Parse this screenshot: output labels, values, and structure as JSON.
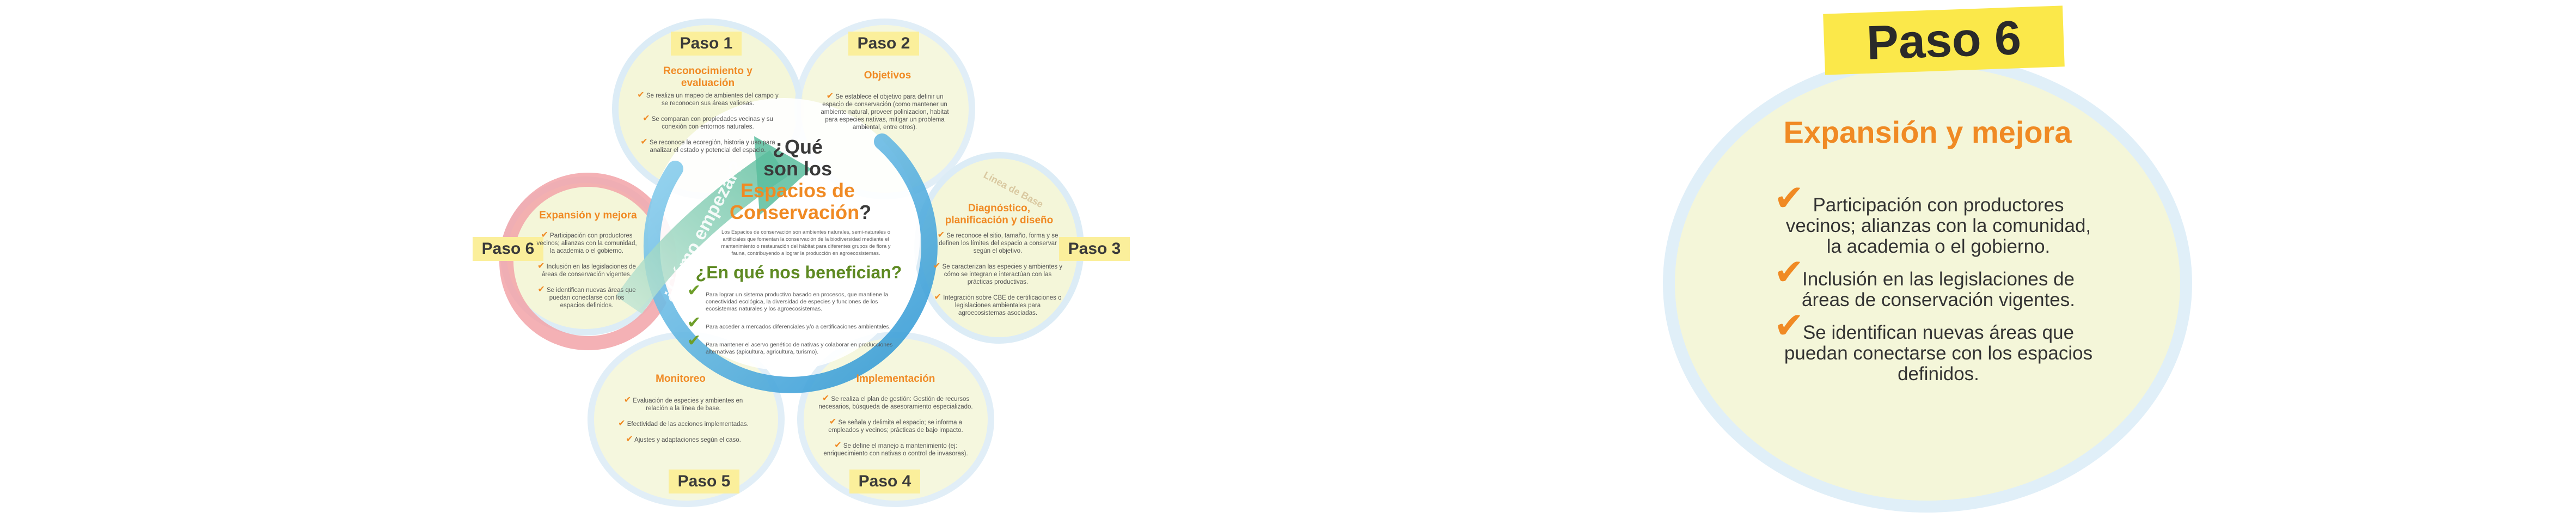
{
  "steps": {
    "paso1": {
      "tag": "Paso 1",
      "title": "Reconocimiento y evaluación",
      "items": [
        "Se realiza un mapeo de ambientes del campo y se reconocen sus áreas valiosas.",
        "Se comparan con propiedades vecinas y su conexión con entornos naturales.",
        "Se reconoce la ecoregión, historia y uso para analizar el estado y potencial del espacio."
      ]
    },
    "paso2": {
      "tag": "Paso 2",
      "title": "Objetivos",
      "items": [
        "Se establece el objetivo para definir un espacio de conservación (como mantener un ambiente natural, proveer polinizacion, habitat para especies nativas, mitigar un problema ambiental, entre otros)."
      ]
    },
    "paso3": {
      "tag": "Paso 3",
      "title": "Diagnóstico, planificación y diseño",
      "items": [
        "Se reconoce el sitio, tamaño, forma y se definen los límites del espacio a conservar según el objetivo.",
        "Se caracterizan las especies y ambientes y cómo se integran e interactúan con las prácticas productivas.",
        "Integración sobre CBE de certificaciones o legislaciones ambientales para agroecosistemas asociadas."
      ]
    },
    "paso4": {
      "tag": "Paso 4",
      "title": "Implementación",
      "items": [
        "Se realiza el plan de gestión: Gestión de recursos necesarios, búsqueda de asesoramiento especializado.",
        "Se señala y delimita el espacio; se informa a empleados y vecinos; prácticas de bajo impacto.",
        "Se define el manejo a mantenimiento (ej: enriquecimiento con nativas o control de invasoras)."
      ]
    },
    "paso5": {
      "tag": "Paso 5",
      "title": "Monitoreo",
      "items": [
        "Evaluación de especies y ambientes en relación a la línea de base.",
        "Efectividad de las acciones implementadas.",
        "Ajustes y adaptaciones según el caso."
      ]
    },
    "paso6": {
      "tag": "Paso 6",
      "title": "Expansión y mejora",
      "items": [
        "Participación con productores vecinos; alianzas con la comunidad, la academia o el gobierno.",
        "Inclusión en las legislaciones de áreas de conservación vigentes.",
        "Se identifican nuevas áreas que puedan conectarse con los espacios definidos."
      ]
    }
  },
  "center": {
    "question_line1": "¿Qué",
    "question_line2": "son los",
    "question_highlight1": "Espacios de",
    "question_highlight2": "Conservación",
    "question_mark": "?",
    "definition": "Los Espacios de conservación son ambientes naturales, semi-naturales o artificiales que fomentan la conservación de la biodiversidad mediante el mantenimiento o restauración del hábitat para diferentes grupos de flora y fauna, contribuyendo a lograr la producción en agroecosistemas.",
    "question2": "¿En qué nos benefician?",
    "benefits": [
      "Para lograr un sistema productivo basado en procesos, que mantiene la conectividad ecológica, la diversidad de especies y funciones de los ecosistemas naturales y los agroecosistemas.",
      "Para acceder a mercados diferenciales y/o a certificaciones ambientales.",
      "Para mantener el acervo genético de nativas y colaborar en producciones alternativas (apicultura, agricultura, turismo)."
    ]
  },
  "ring_labels": {
    "como_empezar": "¿Cómo empezar?",
    "linea_de_base": "Línea de Base"
  },
  "detail": {
    "title": "Paso 6",
    "subtitle": "Expansión y mejora",
    "items": [
      "Participación con productores vecinos; alianzas con la comunidad, la academia o el gobierno.",
      "Inclusión en las legislaciones de áreas de conservación vigentes.",
      "Se identifican nuevas áreas que puedan conectarse con los espacios definidos."
    ]
  },
  "colors": {
    "accent_orange": "#f08a24",
    "tag_yellow": "#fbef9b",
    "title_yellow": "#fbe84a",
    "bubble_fill": "#f4f6d9",
    "bubble_border": "#dcecf6",
    "ring_blue": "#4fb2e3",
    "ring_teal": "#6cc3a8",
    "ring_pink": "#f2a3a8",
    "text_green": "#5e8a22"
  },
  "icons": {
    "check": "check-icon",
    "arrow": "arrow-head-icon"
  }
}
